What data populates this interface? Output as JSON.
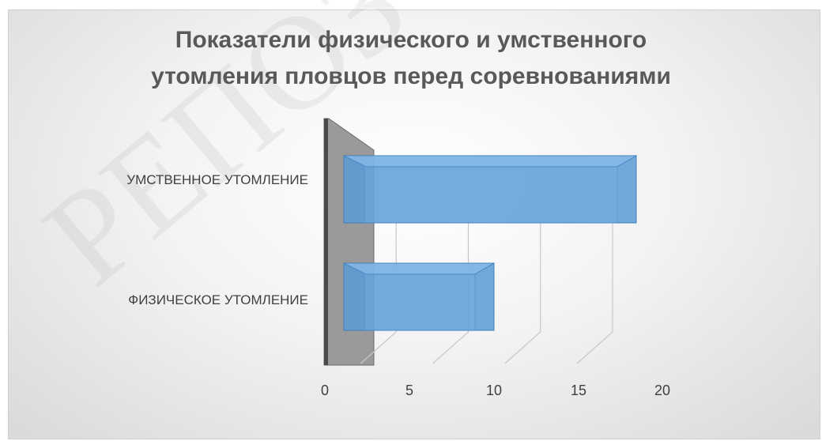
{
  "chart_data": {
    "type": "bar",
    "orientation": "horizontal",
    "style": "3d",
    "title": "Показатели физического и умственного утомления пловцов перед соревнованиями",
    "title_lines": [
      "Показатели физического и умственного",
      "утомления пловцов перед соревнованиями"
    ],
    "categories": [
      "ФИЗИЧЕСКОЕ УТОМЛЕНИЕ",
      "УМСТВЕННОЕ УТОМЛЕНИЕ"
    ],
    "values": [
      10,
      18
    ],
    "xlim": [
      0,
      20
    ],
    "x_ticks": [
      0,
      5,
      10,
      15,
      20
    ],
    "x_tick_labels": [
      "0",
      "5",
      "10",
      "15",
      "20"
    ],
    "grid": true,
    "legend": "none",
    "bar_color": "#5b9bd5",
    "watermark": "РЕПОЗ"
  }
}
